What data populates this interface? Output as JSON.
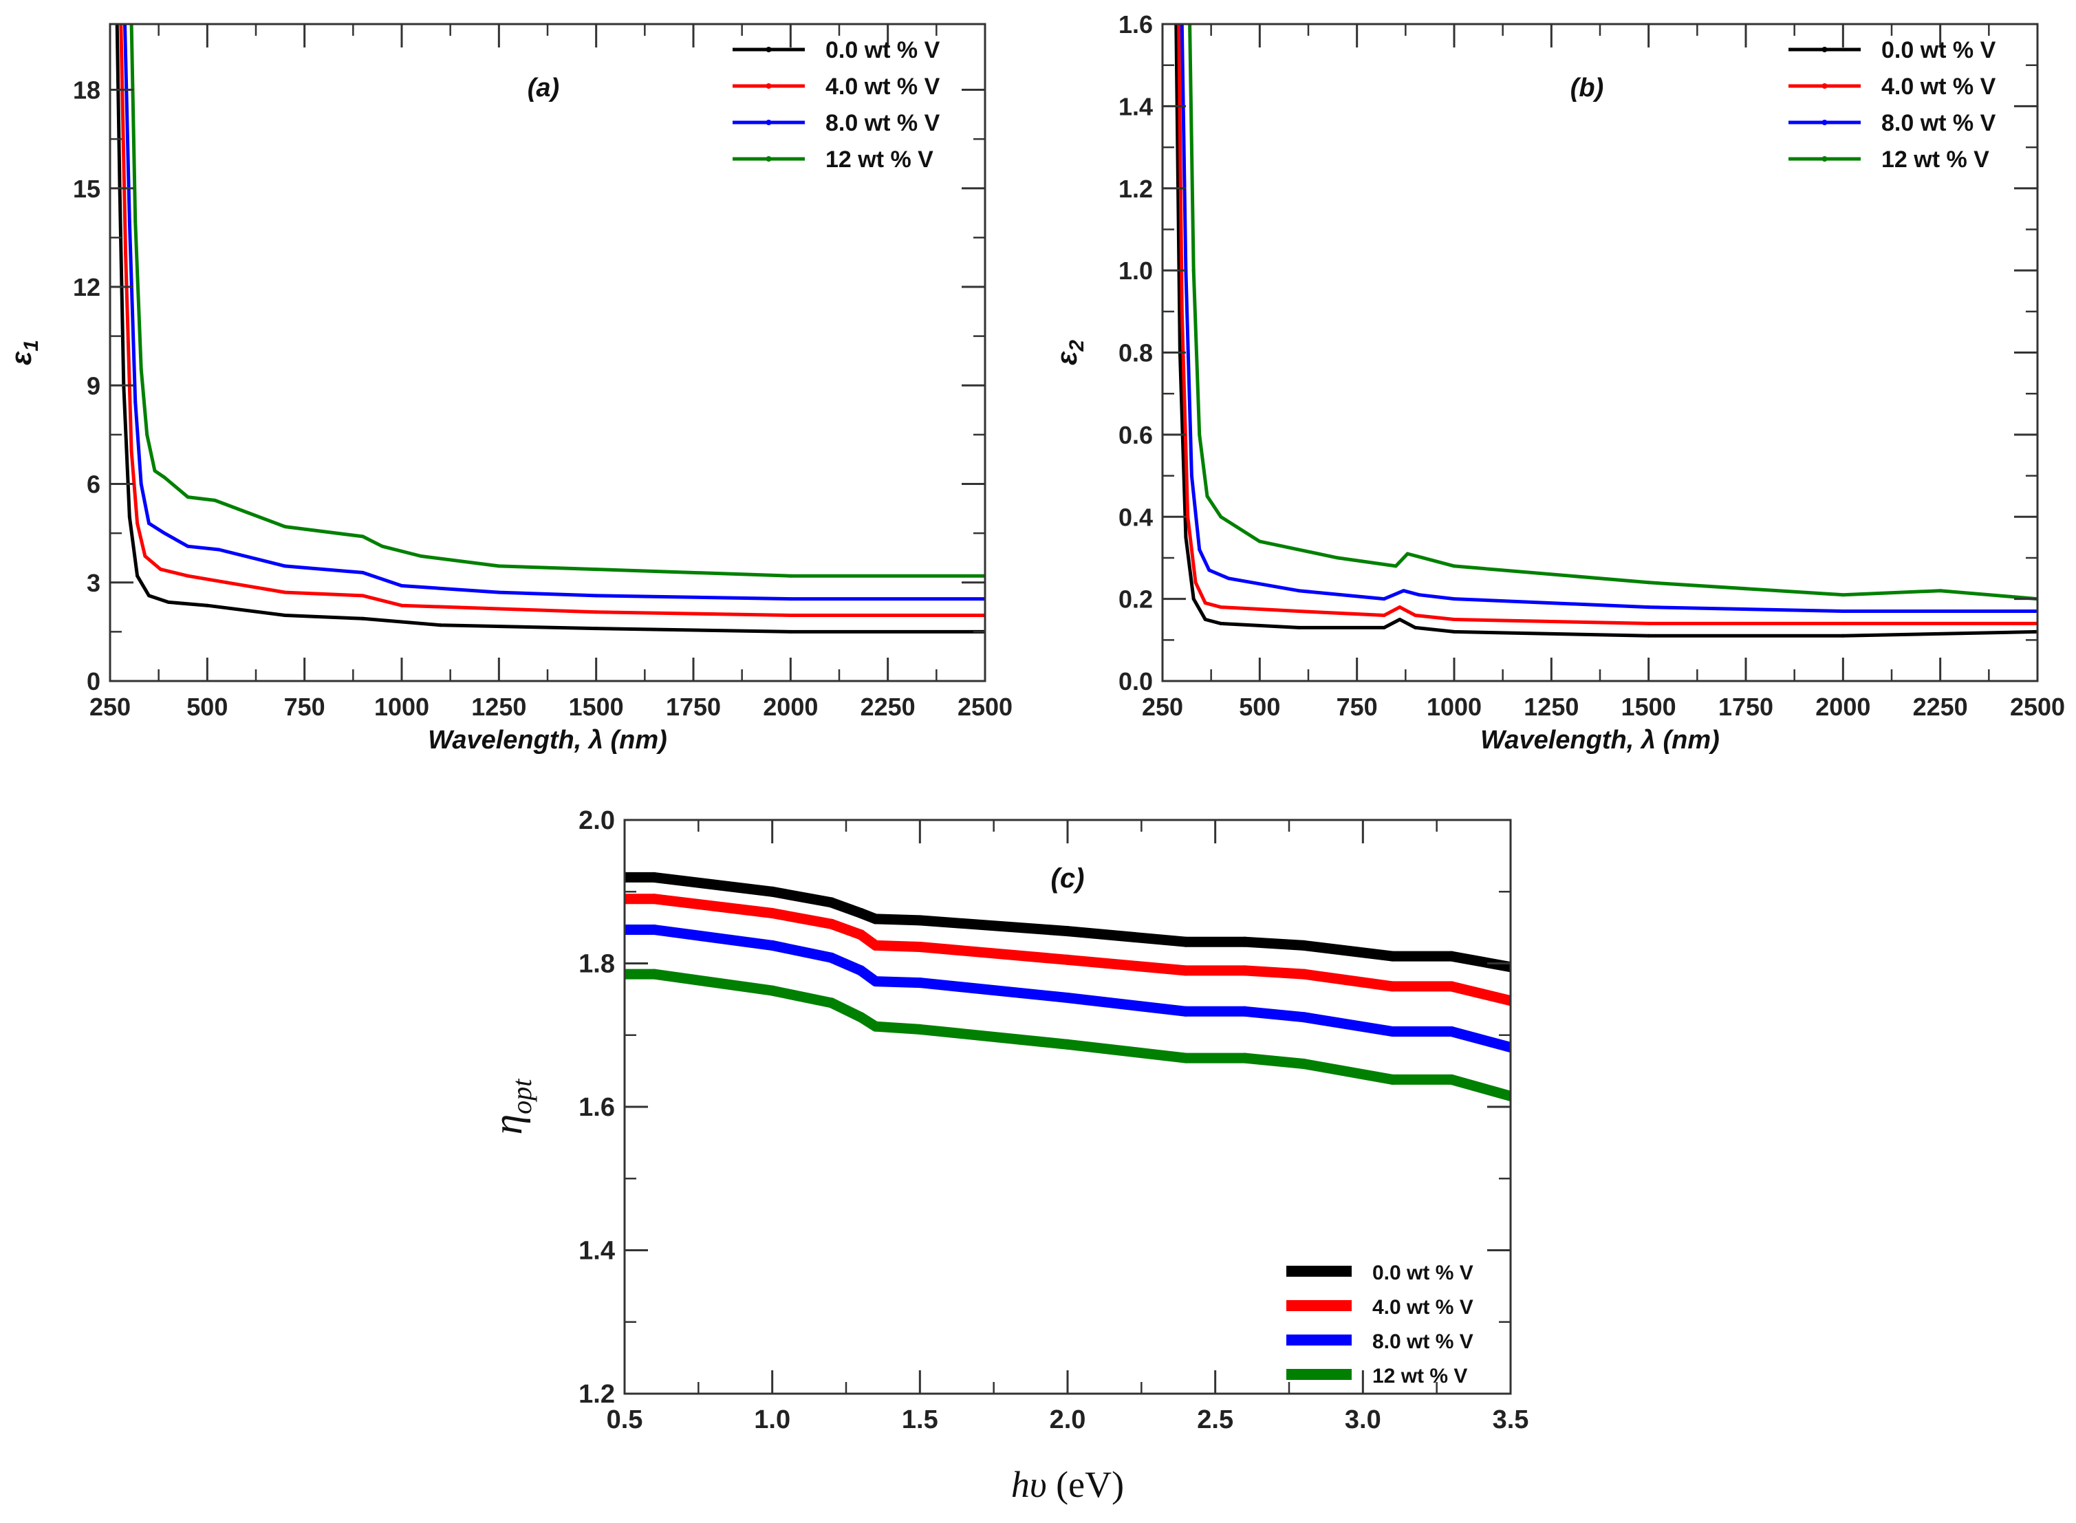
{
  "figure": {
    "background": "#ffffff"
  },
  "series_colors": {
    "0.0": "#000000",
    "4.0": "#ff0000",
    "8.0": "#0000ff",
    "12": "#008000"
  },
  "chart_data": [
    {
      "id": "a",
      "type": "line",
      "panel_label": "(a)",
      "title": "",
      "xlabel": "Wavelength, λ (nm)",
      "ylabel": "ε1",
      "xlim": [
        250,
        2500
      ],
      "ylim": [
        0,
        20
      ],
      "xticks": [
        250,
        500,
        750,
        1000,
        1250,
        1500,
        1750,
        2000,
        2250,
        2500
      ],
      "yticks": [
        0,
        3,
        6,
        9,
        12,
        15,
        18
      ],
      "legend_position": "top-right",
      "series": [
        {
          "name": "0.0 wt % V",
          "color": "#000000",
          "x": [
            268,
            275,
            285,
            300,
            320,
            350,
            400,
            500,
            700,
            900,
            1100,
            1500,
            2000,
            2500
          ],
          "y": [
            20,
            15,
            9,
            5,
            3.2,
            2.6,
            2.4,
            2.3,
            2.0,
            1.9,
            1.7,
            1.6,
            1.5,
            1.5
          ]
        },
        {
          "name": "4.0 wt % V",
          "color": "#ff0000",
          "x": [
            278,
            290,
            305,
            320,
            340,
            380,
            450,
            550,
            700,
            900,
            1000,
            1250,
            1500,
            2000,
            2500
          ],
          "y": [
            20,
            13,
            7,
            4.8,
            3.8,
            3.4,
            3.2,
            3.0,
            2.7,
            2.6,
            2.3,
            2.2,
            2.1,
            2.0,
            2.0
          ]
        },
        {
          "name": "8.0 wt % V",
          "color": "#0000ff",
          "x": [
            288,
            300,
            315,
            330,
            350,
            390,
            450,
            530,
            700,
            900,
            1000,
            1250,
            1500,
            2000,
            2500
          ],
          "y": [
            20,
            14,
            8.5,
            6,
            4.8,
            4.5,
            4.1,
            4.0,
            3.5,
            3.3,
            2.9,
            2.7,
            2.6,
            2.5,
            2.5
          ]
        },
        {
          "name": "12  wt % V",
          "color": "#008000",
          "x": [
            305,
            315,
            330,
            345,
            365,
            390,
            450,
            520,
            700,
            900,
            950,
            1050,
            1250,
            1500,
            2000,
            2500
          ],
          "y": [
            20,
            14,
            9.5,
            7.5,
            6.4,
            6.2,
            5.6,
            5.5,
            4.7,
            4.4,
            4.1,
            3.8,
            3.5,
            3.4,
            3.2,
            3.2
          ]
        }
      ]
    },
    {
      "id": "b",
      "type": "line",
      "panel_label": "(b)",
      "title": "",
      "xlabel": "Wavelength, λ (nm)",
      "ylabel": "ε2",
      "xlim": [
        250,
        2500
      ],
      "ylim": [
        0,
        1.6
      ],
      "xticks": [
        250,
        500,
        750,
        1000,
        1250,
        1500,
        1750,
        2000,
        2250,
        2500
      ],
      "yticks": [
        0.0,
        0.2,
        0.4,
        0.6,
        0.8,
        1.0,
        1.2,
        1.4,
        1.6
      ],
      "legend_position": "top-right",
      "series": [
        {
          "name": "0.0 wt % V",
          "color": "#000000",
          "x": [
            285,
            295,
            310,
            330,
            360,
            400,
            600,
            820,
            860,
            900,
            1000,
            1500,
            2000,
            2500
          ],
          "y": [
            1.6,
            0.8,
            0.35,
            0.2,
            0.15,
            0.14,
            0.13,
            0.13,
            0.15,
            0.13,
            0.12,
            0.11,
            0.11,
            0.12
          ]
        },
        {
          "name": "4.0 wt % V",
          "color": "#ff0000",
          "x": [
            292,
            300,
            315,
            335,
            360,
            400,
            600,
            820,
            860,
            900,
            1000,
            1500,
            2000,
            2500
          ],
          "y": [
            1.6,
            0.9,
            0.4,
            0.24,
            0.19,
            0.18,
            0.17,
            0.16,
            0.18,
            0.16,
            0.15,
            0.14,
            0.14,
            0.14
          ]
        },
        {
          "name": "8.0 wt % V",
          "color": "#0000ff",
          "x": [
            300,
            310,
            325,
            345,
            370,
            420,
            600,
            820,
            870,
            910,
            1000,
            1500,
            2000,
            2500
          ],
          "y": [
            1.6,
            1.0,
            0.5,
            0.32,
            0.27,
            0.25,
            0.22,
            0.2,
            0.22,
            0.21,
            0.2,
            0.18,
            0.17,
            0.17
          ]
        },
        {
          "name": "12  wt % V",
          "color": "#008000",
          "x": [
            320,
            330,
            345,
            365,
            400,
            500,
            700,
            850,
            880,
            920,
            1000,
            1500,
            2000,
            2250,
            2500
          ],
          "y": [
            1.6,
            1.0,
            0.6,
            0.45,
            0.4,
            0.34,
            0.3,
            0.28,
            0.31,
            0.3,
            0.28,
            0.24,
            0.21,
            0.22,
            0.2
          ]
        }
      ]
    },
    {
      "id": "c",
      "type": "line",
      "panel_label": "(c)",
      "title": "",
      "xlabel": "hυ (eV)",
      "ylabel": "ηopt",
      "xlim": [
        0.5,
        3.5
      ],
      "ylim": [
        1.2,
        2.0
      ],
      "xticks": [
        0.5,
        1.0,
        1.5,
        2.0,
        2.5,
        3.0,
        3.5
      ],
      "yticks": [
        1.2,
        1.4,
        1.6,
        1.8,
        2.0
      ],
      "legend_position": "bottom-right",
      "series": [
        {
          "name": "0.0 wt % V",
          "color": "#000000",
          "x": [
            0.5,
            0.6,
            1.0,
            1.2,
            1.3,
            1.35,
            1.5,
            2.0,
            2.4,
            2.6,
            2.8,
            3.1,
            3.3,
            3.5
          ],
          "y": [
            1.92,
            1.92,
            1.9,
            1.885,
            1.87,
            1.862,
            1.86,
            1.845,
            1.83,
            1.83,
            1.825,
            1.81,
            1.81,
            1.795
          ]
        },
        {
          "name": "4.0 wt % V",
          "color": "#ff0000",
          "x": [
            0.5,
            0.6,
            1.0,
            1.2,
            1.3,
            1.35,
            1.5,
            2.0,
            2.4,
            2.6,
            2.8,
            3.1,
            3.3,
            3.5
          ],
          "y": [
            1.89,
            1.89,
            1.87,
            1.855,
            1.84,
            1.825,
            1.823,
            1.805,
            1.79,
            1.79,
            1.785,
            1.768,
            1.768,
            1.748
          ]
        },
        {
          "name": "8.0 wt % V",
          "color": "#0000ff",
          "x": [
            0.5,
            0.6,
            1.0,
            1.2,
            1.3,
            1.35,
            1.5,
            2.0,
            2.4,
            2.6,
            2.8,
            3.1,
            3.3,
            3.5
          ],
          "y": [
            1.847,
            1.847,
            1.825,
            1.808,
            1.79,
            1.775,
            1.773,
            1.752,
            1.733,
            1.733,
            1.725,
            1.705,
            1.705,
            1.683
          ]
        },
        {
          "name": "12  wt % V",
          "color": "#008000",
          "x": [
            0.5,
            0.6,
            1.0,
            1.2,
            1.3,
            1.35,
            1.5,
            2.0,
            2.4,
            2.6,
            2.8,
            3.1,
            3.3,
            3.5
          ],
          "y": [
            1.785,
            1.785,
            1.762,
            1.745,
            1.725,
            1.712,
            1.708,
            1.687,
            1.668,
            1.668,
            1.66,
            1.638,
            1.638,
            1.615
          ]
        }
      ]
    }
  ]
}
